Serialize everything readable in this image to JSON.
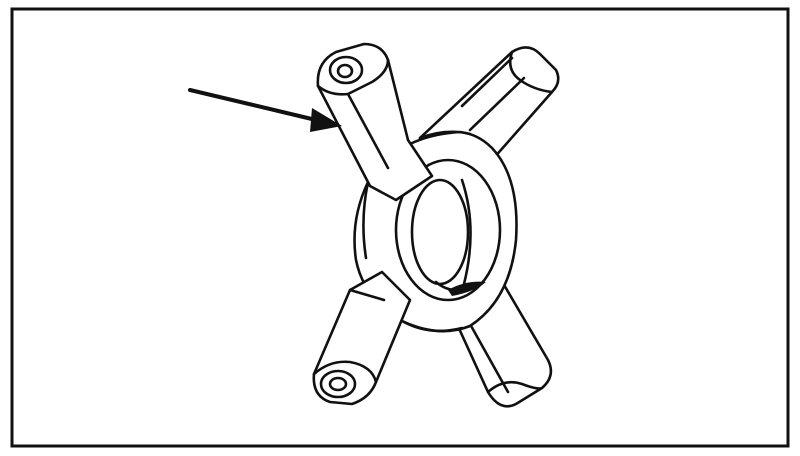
{
  "figure": {
    "subject": "differential-spider-gear-cross",
    "colors": {
      "ink": "#111111",
      "paper": "#ffffff"
    }
  }
}
